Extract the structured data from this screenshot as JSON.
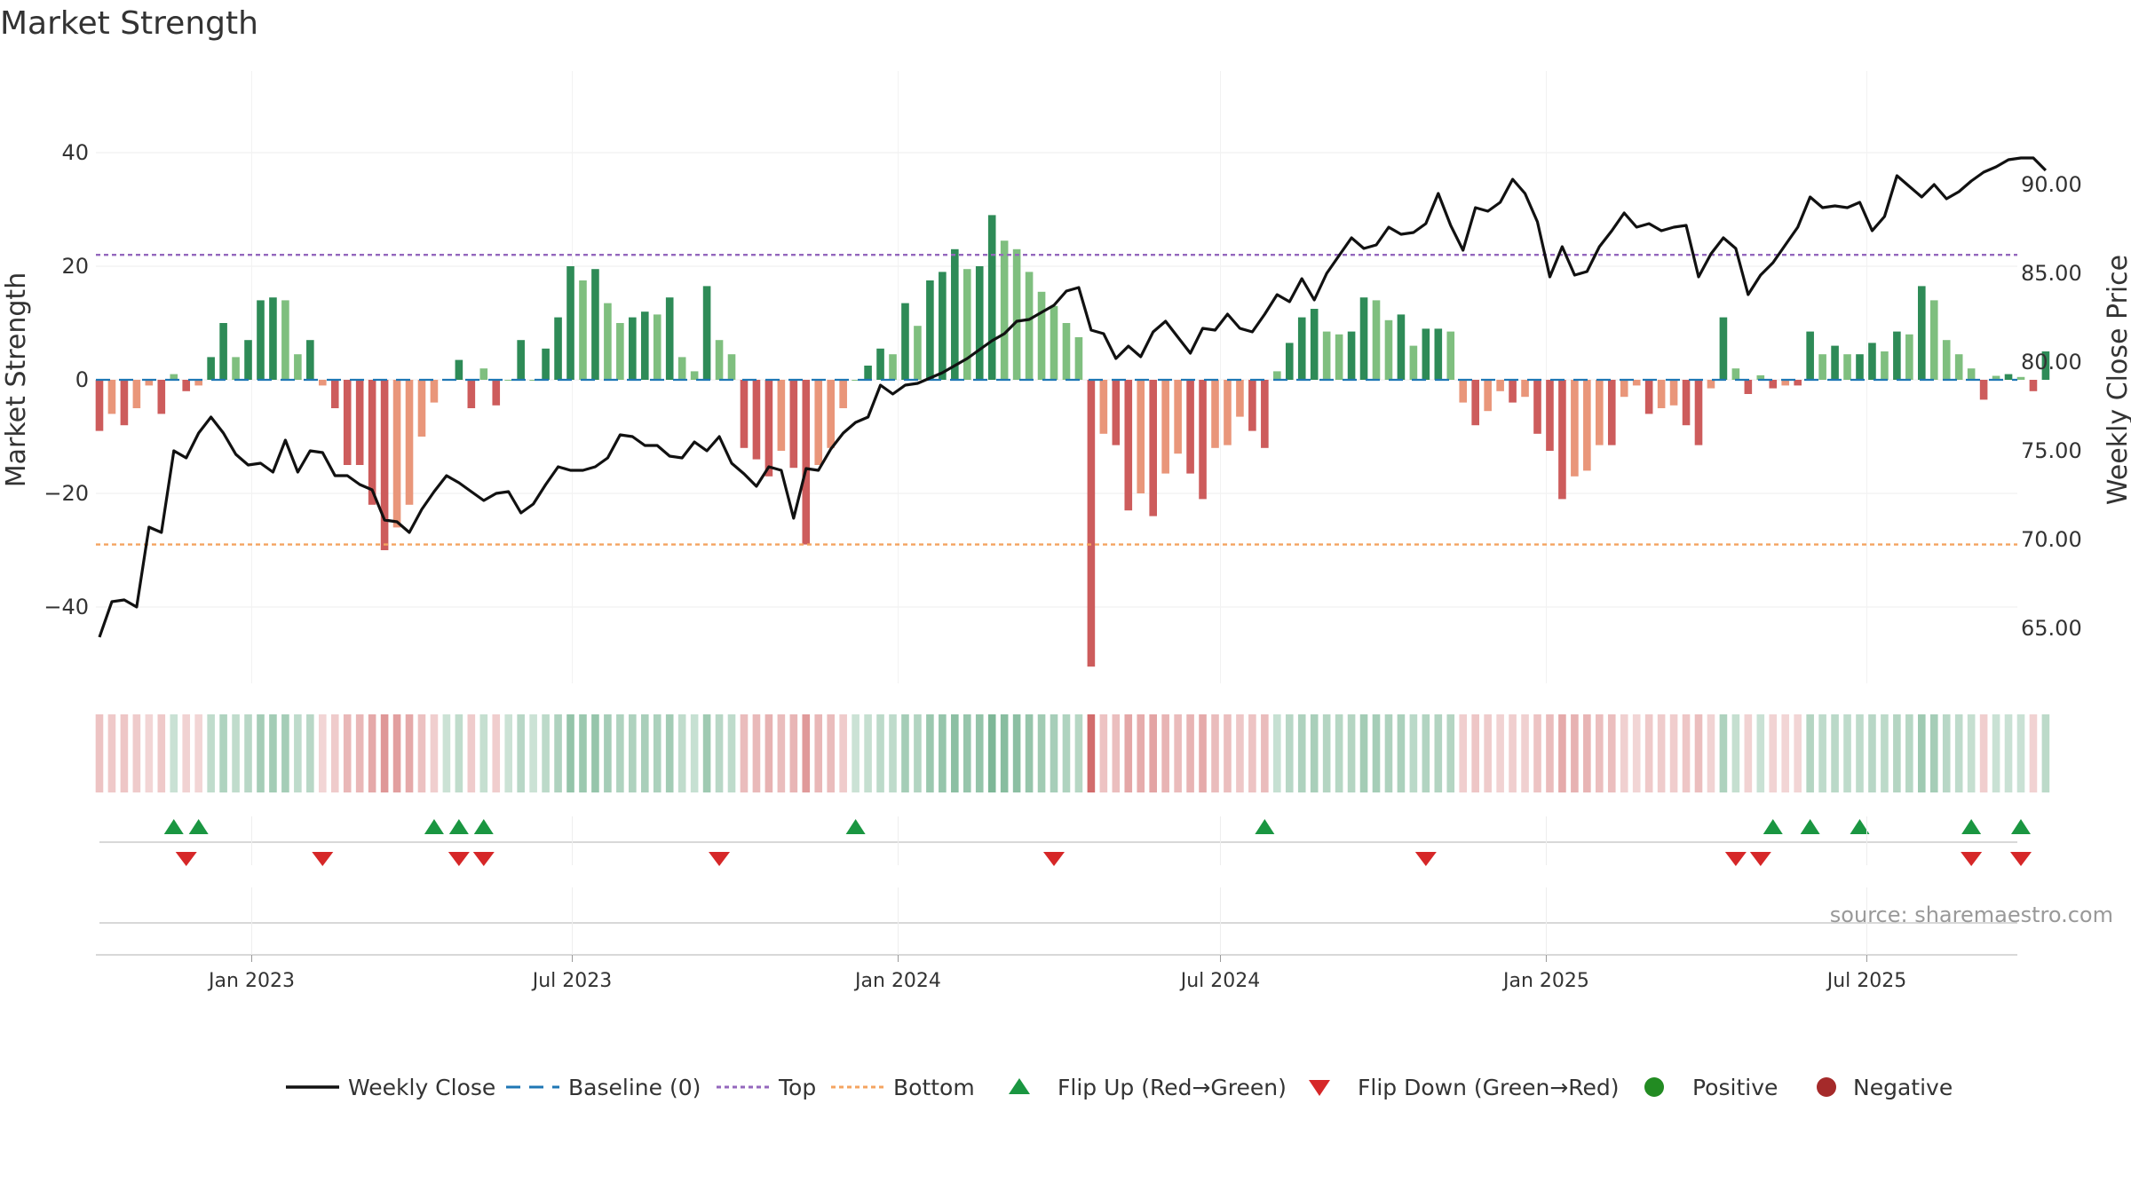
{
  "chart_data": {
    "type": "bar",
    "title": "Market Strength",
    "ylabel": "Market Strength",
    "y2label": "Weekly Close Price",
    "ylim": [
      -54,
      54
    ],
    "y2lim": [
      61.9,
      95.4
    ],
    "yticks": [
      "40",
      "20",
      "0",
      "−20",
      "−40"
    ],
    "y2ticks": [
      "90.00",
      "85.00",
      "80.00",
      "75.00",
      "70.00",
      "65.00"
    ],
    "x_start": "2022-10-07",
    "x_range": [
      "2022-10-05",
      "2025-09-24"
    ],
    "xticks": [
      {
        "date": "2023-01-01",
        "label": "Jan 2023"
      },
      {
        "date": "2023-07-01",
        "label": "Jul 2023"
      },
      {
        "date": "2024-01-01",
        "label": "Jan 2024"
      },
      {
        "date": "2024-07-01",
        "label": "Jul 2024"
      },
      {
        "date": "2025-01-01",
        "label": "Jan 2025"
      },
      {
        "date": "2025-07-01",
        "label": "Jul 2025"
      }
    ],
    "top": 22,
    "bottom": -29,
    "series": [
      {
        "name": "Market Strength",
        "values": [
          -9,
          -6,
          -8,
          -5,
          -1,
          -6,
          1,
          -2,
          -1,
          4,
          10,
          4,
          7,
          14,
          14.5,
          14,
          4.5,
          7,
          -1,
          -5,
          -15,
          -15,
          -22,
          -30,
          -26,
          -22,
          -10,
          -4,
          0,
          3.5,
          -5,
          2,
          -4.5,
          0,
          7,
          0,
          5.5,
          11,
          20,
          17.5,
          19.5,
          13.5,
          10,
          11,
          12,
          11.5,
          14.5,
          4,
          1.5,
          16.5,
          7,
          4.5,
          -12,
          -14,
          -17,
          -12.5,
          -15.5,
          -29,
          -15,
          -12,
          -5,
          0,
          2.5,
          5.5,
          4.5,
          13.5,
          9.5,
          17.5,
          19,
          23,
          19.5,
          20,
          29,
          24.5,
          23,
          19,
          15.5,
          13,
          10,
          7.5,
          -50.5,
          -9.5,
          -11.5,
          -23,
          -20,
          -24,
          -16.5,
          -13,
          -16.5,
          -21,
          -12,
          -11.5,
          -6.5,
          -9,
          -12,
          1.5,
          6.5,
          11,
          12.5,
          8.5,
          8,
          8.5,
          14.5,
          14,
          10.5,
          11.5,
          6,
          9,
          9,
          8.5,
          -4,
          -8,
          -5.5,
          -2,
          -4,
          -3,
          -9.5,
          -12.5,
          -21,
          -17,
          -16,
          -11.5,
          -11.5,
          -3,
          -1,
          -6,
          -5,
          -4.5,
          -8,
          -11.5,
          -1.5,
          11,
          2,
          -2.5,
          0.8,
          -1.5,
          -1,
          -1,
          8.5,
          4.5,
          6,
          4.5,
          4.5,
          6.5,
          5,
          8.5,
          8,
          16.5,
          14,
          7,
          4.5,
          2,
          -3.5,
          0.7,
          1,
          0.5,
          -2,
          5
        ]
      },
      {
        "name": "Weekly Close",
        "values": [
          64.5,
          66.5,
          66.6,
          66.2,
          70.7,
          70.4,
          75,
          74.6,
          76,
          76.9,
          76,
          74.8,
          74.2,
          74.3,
          73.8,
          75.6,
          73.8,
          75,
          74.9,
          73.6,
          73.6,
          73.1,
          72.8,
          71.1,
          71,
          70.4,
          71.7,
          72.7,
          73.6,
          73.2,
          72.7,
          72.2,
          72.6,
          72.7,
          71.5,
          72,
          73.1,
          74.1,
          73.9,
          73.9,
          74.1,
          74.6,
          75.9,
          75.8,
          75.3,
          75.3,
          74.7,
          74.6,
          75.5,
          75,
          75.8,
          74.3,
          73.7,
          73,
          74.1,
          73.9,
          71.2,
          74,
          73.9,
          75.1,
          76,
          76.6,
          76.9,
          78.7,
          78.2,
          78.7,
          78.8,
          79.1,
          79.4,
          79.8,
          80.2,
          80.7,
          81.2,
          81.6,
          82.3,
          82.4,
          82.8,
          83.2,
          84,
          84.2,
          81.8,
          81.6,
          80.2,
          80.9,
          80.3,
          81.7,
          82.3,
          81.4,
          80.5,
          81.9,
          81.8,
          82.7,
          81.9,
          81.7,
          82.7,
          83.8,
          83.4,
          84.7,
          83.5,
          85,
          86,
          87,
          86.4,
          86.6,
          87.6,
          87.2,
          87.3,
          87.8,
          89.5,
          87.7,
          86.3,
          88.7,
          88.5,
          89,
          90.3,
          89.5,
          87.9,
          84.8,
          86.5,
          84.9,
          85.1,
          86.5,
          87.4,
          88.4,
          87.6,
          87.8,
          87.4,
          87.6,
          87.7,
          84.8,
          86.1,
          87,
          86.4,
          83.8,
          84.9,
          85.6,
          86.6,
          87.6,
          89.3,
          88.7,
          88.8,
          88.7,
          89,
          87.4,
          88.2,
          90.5,
          89.9,
          89.3,
          90,
          89.2,
          89.6,
          90.2,
          90.7,
          91,
          91.4,
          91.5,
          91.5,
          90.8
        ]
      }
    ],
    "flip_up": [
      6,
      8,
      27,
      29,
      31,
      61,
      94,
      135,
      138,
      142,
      151,
      155
    ],
    "flip_down": [
      7,
      18,
      29,
      31,
      50,
      77,
      107,
      132,
      134,
      151,
      155
    ],
    "legend": [
      {
        "key": "close",
        "label": "Weekly Close"
      },
      {
        "key": "baseline",
        "label": "Baseline (0)"
      },
      {
        "key": "top",
        "label": "Top"
      },
      {
        "key": "bottom",
        "label": "Bottom"
      },
      {
        "key": "flipup",
        "label": "Flip Up (Red→Green)"
      },
      {
        "key": "flipdown",
        "label": "Flip Down (Green→Red)"
      },
      {
        "key": "positive",
        "label": "Positive"
      },
      {
        "key": "negative",
        "label": "Negative"
      }
    ],
    "source": "source: sharemaestro.com",
    "colors": {
      "pos_strong": "#2e8b57",
      "pos_weak": "#7fbf7f",
      "neg_strong": "#cd5c5c",
      "neg_weak": "#e9967a",
      "close": "#111111",
      "baseline": "#1f77b4",
      "top": "#9467bd",
      "bottom": "#f4a460",
      "flip_up": "#1a9641",
      "flip_down": "#d62728",
      "positive_dot": "#228b22",
      "negative_dot": "#a52a2a"
    }
  }
}
